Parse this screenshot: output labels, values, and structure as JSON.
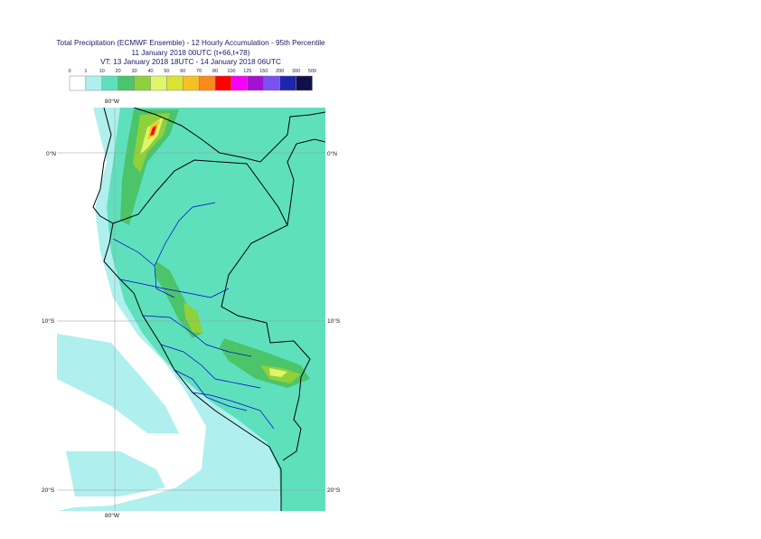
{
  "header": {
    "title_line1": "Total Precipitation (ECMWF Ensemble) - 12 Hourly Accumulation - 95th Percentile",
    "title_line2": "11 January 2018 00UTC (t+66,t+78)",
    "title_line3": "VT: 13 January 2018 18UTC - 14 January 2018 06UTC"
  },
  "legend": {
    "ticks": [
      "0",
      "1",
      "10",
      "20",
      "30",
      "40",
      "50",
      "60",
      "70",
      "80",
      "100",
      "125",
      "150",
      "200",
      "300",
      "500"
    ],
    "colors": [
      "#ffffff",
      "#aff0ee",
      "#5fe0bd",
      "#4cc46a",
      "#8fd13b",
      "#dff66a",
      "#d8e336",
      "#f7c022",
      "#fa8a1b",
      "#fe0000",
      "#f600f6",
      "#a311d2",
      "#7851f1",
      "#1c25ac",
      "#101049"
    ]
  },
  "map": {
    "lat_labels": {
      "n0": "0°N",
      "s10": "10°S",
      "s20": "20°S"
    },
    "lon_labels": {
      "top": "80°W",
      "bottom": "80°W"
    },
    "palette": {
      "ocean_light": "#aff0ee",
      "land_green": "#5fe0bd",
      "moderate": "#4cc46a",
      "heavy": "#8fd13b",
      "very_heavy": "#dff66a",
      "peak_orange": "#f7c022",
      "peak_red": "#fe0000",
      "country_border": "#000000",
      "region_border": "#0000cc",
      "graticule": "#999999"
    }
  }
}
